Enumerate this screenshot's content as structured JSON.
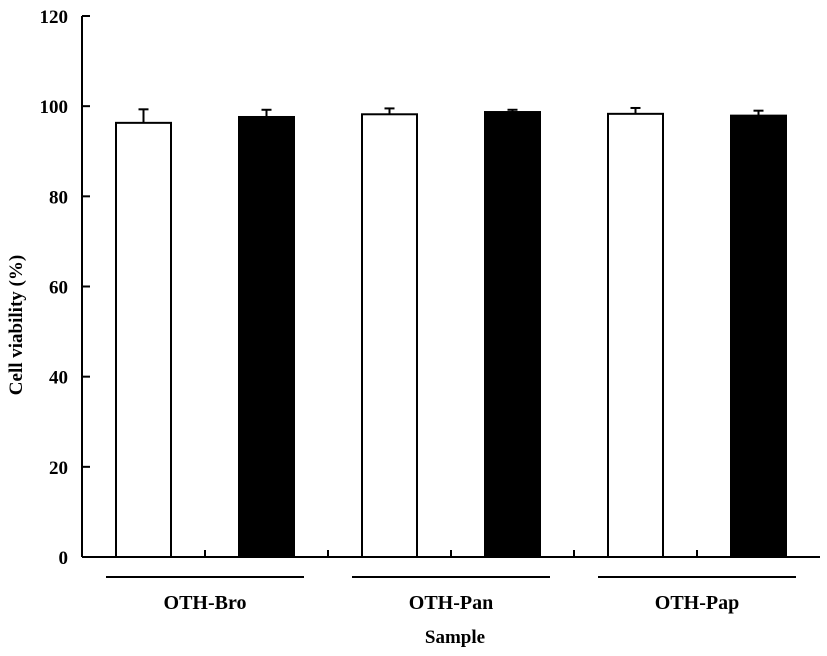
{
  "chart_data": {
    "type": "bar",
    "title": "",
    "xlabel": "Sample",
    "ylabel": "Cell viability  (%)",
    "ylim": [
      0,
      120
    ],
    "yticks": [
      0,
      20,
      40,
      60,
      80,
      100,
      120
    ],
    "categories": [
      "OTH-Bro",
      "OTH-Pan",
      "OTH-Pap"
    ],
    "series": [
      {
        "values": [
          96.3,
          98.2,
          98.3
        ],
        "errors": [
          3.0,
          1.3,
          1.3
        ],
        "color": "#ffffff"
      },
      {
        "values": [
          97.6,
          98.7,
          97.9
        ],
        "errors": [
          1.6,
          0.5,
          1.1
        ],
        "color": "#000000"
      }
    ],
    "grid": false,
    "legend": "none"
  }
}
